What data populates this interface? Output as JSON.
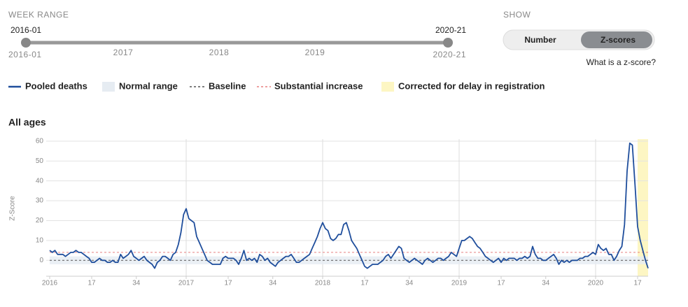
{
  "week_range": {
    "label": "WEEK RANGE",
    "start": "2016-01",
    "end": "2020-21",
    "min_label": "2016-01",
    "max_label": "2020-21",
    "years": [
      "2017",
      "2018",
      "2019"
    ]
  },
  "show": {
    "label": "SHOW",
    "options": [
      "Number",
      "Z-scores"
    ],
    "active": 1,
    "help": "What is a z-score?"
  },
  "chart_data": {
    "type": "line",
    "title": "All ages",
    "y_label": "Z-Score",
    "xlim": [
      0,
      228
    ],
    "ylim": [
      -8,
      61
    ],
    "xticks": [
      {
        "value": 0,
        "label": "2016"
      },
      {
        "value": 16,
        "label": "17"
      },
      {
        "value": 33,
        "label": "34"
      },
      {
        "value": 52,
        "label": "2017"
      },
      {
        "value": 68,
        "label": "17"
      },
      {
        "value": 85,
        "label": "34"
      },
      {
        "value": 104,
        "label": "2018"
      },
      {
        "value": 120,
        "label": "17"
      },
      {
        "value": 137,
        "label": "34"
      },
      {
        "value": 156,
        "label": "2019"
      },
      {
        "value": 172,
        "label": "17"
      },
      {
        "value": 189,
        "label": "34"
      },
      {
        "value": 208,
        "label": "2020"
      },
      {
        "value": 224,
        "label": "17"
      }
    ],
    "yticks": [
      0,
      10,
      20,
      30,
      40,
      50,
      60
    ],
    "grid": true,
    "series": [
      {
        "name": "Pooled deaths",
        "color": "#1f4e9c",
        "values": [
          5,
          4,
          5,
          3,
          3,
          3,
          2,
          3,
          4,
          4,
          5,
          4,
          4,
          3,
          2,
          1,
          -1,
          -1,
          0,
          1,
          0,
          0,
          -1,
          -1,
          0,
          -1,
          -1,
          3,
          1,
          2,
          3,
          5,
          2,
          1,
          0,
          1,
          2,
          0,
          -1,
          -2,
          -4,
          -1,
          0,
          2,
          2,
          1,
          0,
          3,
          4,
          8,
          14,
          23,
          26,
          21,
          20,
          19,
          12,
          9,
          6,
          3,
          0,
          -1,
          -2,
          -2,
          -2,
          -2,
          1,
          2,
          1,
          1,
          1,
          0,
          -2,
          1,
          5,
          0,
          1,
          0,
          1,
          -1,
          3,
          2,
          0,
          1,
          -1,
          -2,
          -3,
          -1,
          0,
          1,
          2,
          2,
          3,
          1,
          -1,
          -1,
          0,
          1,
          2,
          3,
          6,
          9,
          12,
          16,
          19,
          16,
          15,
          11,
          10,
          11,
          13,
          13,
          18,
          19,
          15,
          10,
          8,
          6,
          3,
          0,
          -3,
          -4,
          -3,
          -2,
          -2,
          -2,
          -1,
          0,
          2,
          3,
          1,
          3,
          5,
          7,
          6,
          1,
          0,
          -1,
          0,
          1,
          0,
          -1,
          -2,
          0,
          1,
          0,
          -1,
          0,
          1,
          1,
          0,
          1,
          2,
          4,
          3,
          2,
          6,
          10,
          10,
          11,
          12,
          11,
          9,
          7,
          6,
          4,
          2,
          1,
          0,
          -1,
          0,
          1,
          -1,
          1,
          0,
          1,
          1,
          1,
          0,
          1,
          1,
          2,
          1,
          2,
          7,
          3,
          1,
          1,
          0,
          0,
          1,
          2,
          3,
          1,
          -2,
          0,
          -1,
          0,
          -1,
          0,
          0,
          0,
          1,
          1,
          2,
          2,
          3,
          4,
          3,
          8,
          6,
          5,
          6,
          3,
          3,
          0,
          2,
          5,
          7,
          18,
          45,
          59,
          58,
          38,
          17,
          10,
          5,
          0,
          -4
        ]
      }
    ],
    "normal_range": {
      "name": "Normal range",
      "range": [
        -2,
        2
      ],
      "color": "#e6ecf2"
    },
    "baseline": {
      "name": "Baseline",
      "value": 0,
      "color": "#555555"
    },
    "substantial_increase": {
      "name": "Substantial increase",
      "value": 4,
      "color": "#e88080"
    },
    "corrected": {
      "name": "Corrected for delay in registration",
      "range": [
        224,
        228
      ],
      "color": "#fdf6c3"
    }
  }
}
